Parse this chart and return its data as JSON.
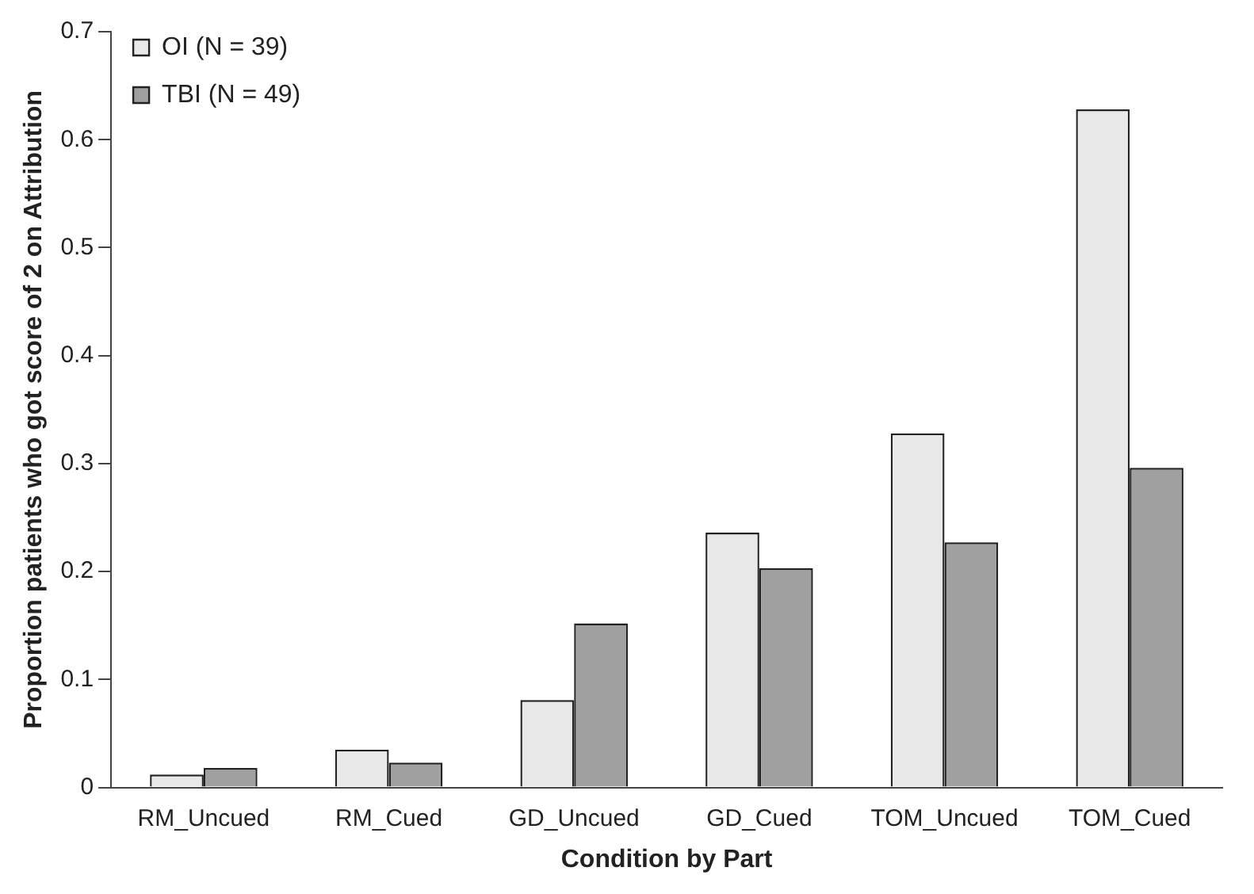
{
  "chart_data": {
    "type": "bar",
    "xlabel": "Condition by Part",
    "ylabel": "Proportion patients who got score of 2 on Attribution",
    "categories": [
      "RM_Uncued",
      "RM_Cued",
      "GD_Uncued",
      "GD_Cued",
      "TOM_Uncued",
      "TOM_Cued"
    ],
    "series": [
      {
        "name": "OI (N = 39)",
        "color": "#e8e8e8",
        "values": [
          0.012,
          0.035,
          0.081,
          0.236,
          0.328,
          0.628
        ]
      },
      {
        "name": "TBI (N = 49)",
        "color": "#a0a0a0",
        "values": [
          0.018,
          0.023,
          0.152,
          0.203,
          0.227,
          0.296
        ]
      }
    ],
    "ylim": [
      0,
      0.7
    ],
    "yticks": [
      0,
      0.1,
      0.2,
      0.3,
      0.4,
      0.5,
      0.6,
      0.7
    ],
    "grid": false,
    "legend": "top left"
  }
}
